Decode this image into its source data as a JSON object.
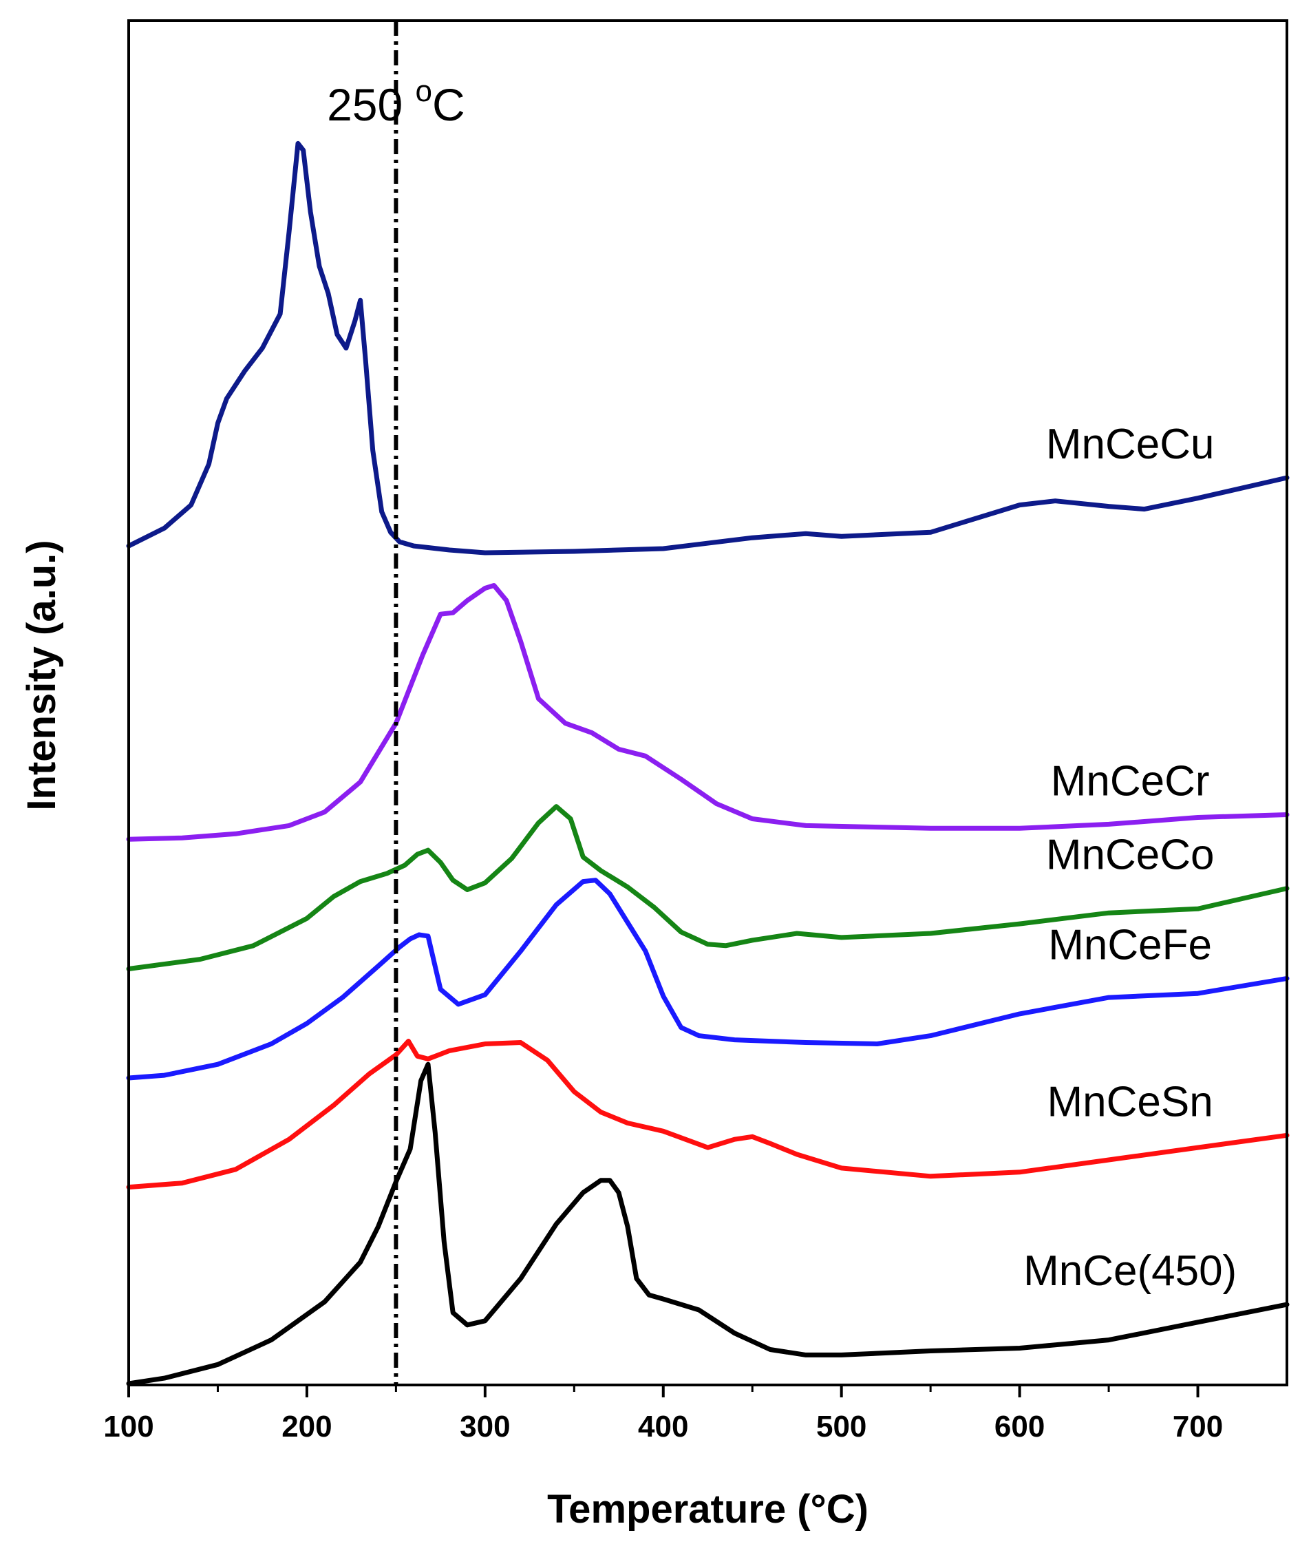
{
  "chart_data": {
    "type": "line",
    "title": "",
    "xlabel": "Temperature (°C)",
    "ylabel": "Intensity (a.u.)",
    "xlim": [
      100,
      750
    ],
    "ylim": [
      0,
      100
    ],
    "xticks": [
      100,
      200,
      300,
      400,
      500,
      600,
      700
    ],
    "yticks": [],
    "grid": false,
    "legend": "none",
    "annotations": [
      {
        "type": "vline",
        "x": 250,
        "style": "dash-dot",
        "label_main": "250 ",
        "label_sup": "o",
        "label_unit": "C"
      }
    ],
    "series": [
      {
        "name": "MnCeCu",
        "label": "MnCeCu",
        "color": "#0d1a8a",
        "x": [
          100,
          120,
          135,
          145,
          150,
          155,
          165,
          175,
          185,
          190,
          195,
          198,
          202,
          207,
          212,
          217,
          222,
          227,
          230,
          233,
          237,
          242,
          247,
          252,
          260,
          280,
          300,
          350,
          400,
          450,
          480,
          500,
          550,
          600,
          620,
          650,
          670,
          700,
          750
        ],
        "y": [
          61.5,
          62.8,
          64.5,
          67.5,
          70.5,
          72.3,
          74.3,
          76.0,
          78.5,
          84.5,
          91.0,
          90.5,
          86.0,
          82.0,
          80.0,
          77.0,
          76.0,
          78.0,
          79.5,
          75.0,
          68.5,
          64.0,
          62.5,
          61.8,
          61.5,
          61.2,
          61.0,
          61.1,
          61.3,
          62.1,
          62.4,
          62.2,
          62.5,
          64.5,
          64.8,
          64.4,
          64.2,
          65.0,
          66.5
        ]
      },
      {
        "name": "MnCeCr",
        "label": "MnCeCr",
        "color": "#8b1ff0",
        "x": [
          100,
          130,
          160,
          190,
          210,
          230,
          250,
          265,
          275,
          282,
          290,
          300,
          305,
          312,
          320,
          330,
          345,
          360,
          375,
          390,
          410,
          430,
          450,
          480,
          550,
          600,
          650,
          700,
          750
        ],
        "y": [
          40.0,
          40.1,
          40.4,
          41.0,
          42.0,
          44.2,
          48.5,
          53.5,
          56.5,
          56.6,
          57.5,
          58.4,
          58.6,
          57.5,
          54.5,
          50.3,
          48.5,
          47.8,
          46.6,
          46.1,
          44.4,
          42.6,
          41.5,
          41.0,
          40.8,
          40.8,
          41.1,
          41.6,
          41.8
        ]
      },
      {
        "name": "MnCeCo",
        "label": "MnCeCo",
        "color": "#158515",
        "x": [
          100,
          140,
          170,
          200,
          215,
          230,
          245,
          255,
          262,
          268,
          275,
          282,
          290,
          300,
          315,
          330,
          340,
          348,
          355,
          365,
          380,
          395,
          410,
          425,
          435,
          450,
          475,
          500,
          550,
          600,
          650,
          700,
          750
        ],
        "y": [
          30.5,
          31.2,
          32.2,
          34.2,
          35.8,
          36.9,
          37.5,
          38.1,
          38.9,
          39.2,
          38.3,
          37.0,
          36.3,
          36.8,
          38.6,
          41.2,
          42.4,
          41.5,
          38.7,
          37.7,
          36.5,
          35.0,
          33.2,
          32.3,
          32.2,
          32.6,
          33.1,
          32.8,
          33.1,
          33.8,
          34.6,
          34.9,
          36.4
        ]
      },
      {
        "name": "MnCeFe",
        "label": "MnCeFe",
        "color": "#1a1aff",
        "x": [
          100,
          120,
          150,
          180,
          200,
          220,
          240,
          252,
          258,
          263,
          268,
          275,
          285,
          300,
          320,
          340,
          355,
          362,
          370,
          380,
          390,
          400,
          410,
          420,
          440,
          480,
          520,
          550,
          600,
          650,
          700,
          750
        ],
        "y": [
          22.5,
          22.7,
          23.5,
          25.0,
          26.5,
          28.4,
          30.7,
          32.1,
          32.7,
          33.0,
          32.9,
          29.0,
          27.9,
          28.6,
          31.8,
          35.2,
          36.9,
          37.0,
          36.0,
          33.9,
          31.8,
          28.5,
          26.2,
          25.6,
          25.3,
          25.1,
          25.0,
          25.6,
          27.2,
          28.4,
          28.7,
          29.8
        ]
      },
      {
        "name": "MnCeSn",
        "label": "MnCeSn",
        "color": "#ff0f0f",
        "x": [
          100,
          130,
          160,
          190,
          215,
          235,
          250,
          257,
          262,
          268,
          280,
          300,
          320,
          335,
          350,
          365,
          380,
          400,
          425,
          440,
          450,
          460,
          475,
          500,
          550,
          600,
          650,
          700,
          750
        ],
        "y": [
          14.5,
          14.8,
          15.8,
          18.0,
          20.5,
          22.8,
          24.2,
          25.2,
          24.1,
          23.9,
          24.5,
          25.0,
          25.1,
          23.8,
          21.5,
          20.0,
          19.2,
          18.6,
          17.4,
          18.0,
          18.2,
          17.7,
          16.9,
          15.9,
          15.3,
          15.6,
          16.5,
          17.4,
          18.3
        ]
      },
      {
        "name": "MnCe(450)",
        "label": "MnCe(450)",
        "color": "#000000",
        "x": [
          100,
          120,
          150,
          180,
          210,
          230,
          240,
          250,
          258,
          264,
          268,
          272,
          277,
          282,
          290,
          300,
          320,
          340,
          355,
          365,
          370,
          375,
          380,
          385,
          392,
          400,
          420,
          440,
          460,
          480,
          500,
          550,
          600,
          650,
          700,
          750
        ],
        "y": [
          0.1,
          0.5,
          1.5,
          3.3,
          6.1,
          9.0,
          11.6,
          14.9,
          17.3,
          22.3,
          23.5,
          18.5,
          10.5,
          5.3,
          4.4,
          4.7,
          7.8,
          11.8,
          14.1,
          15.0,
          15.0,
          14.1,
          11.6,
          7.8,
          6.6,
          6.3,
          5.5,
          3.8,
          2.6,
          2.2,
          2.2,
          2.5,
          2.7,
          3.3,
          4.6,
          5.9
        ]
      }
    ]
  }
}
